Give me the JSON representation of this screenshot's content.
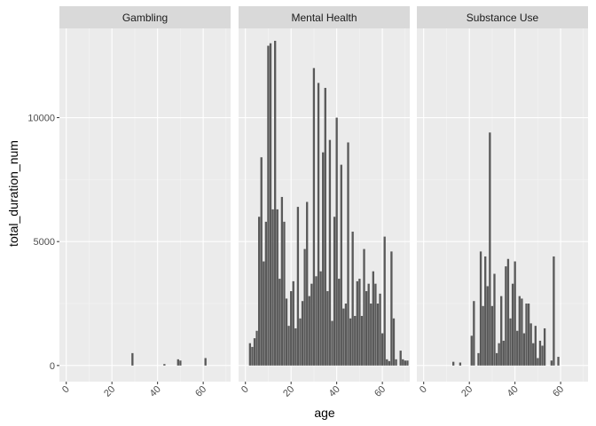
{
  "chart_data": {
    "type": "bar",
    "xlabel": "age",
    "ylabel": "total_duration_num",
    "xlim": [
      -3,
      72
    ],
    "ylim": [
      -650,
      13600
    ],
    "x_ticks": [
      0,
      20,
      40,
      60
    ],
    "y_ticks": [
      0,
      5000,
      10000
    ],
    "y_tick_labels": [
      "0",
      "5000",
      "10000"
    ],
    "grid": true,
    "colors": {
      "bar": "#595959",
      "panel": "#ebebeb",
      "strip": "#d9d9d9",
      "grid_major": "#ffffff"
    },
    "facets": [
      {
        "name": "Gambling",
        "x": [
          29,
          43,
          49,
          50,
          61
        ],
        "values": [
          500,
          60,
          250,
          200,
          300
        ]
      },
      {
        "name": "Mental Health",
        "x": [
          2,
          3,
          4,
          5,
          6,
          7,
          8,
          9,
          10,
          11,
          12,
          13,
          14,
          15,
          16,
          17,
          18,
          19,
          20,
          21,
          22,
          23,
          24,
          25,
          26,
          27,
          28,
          29,
          30,
          31,
          32,
          33,
          34,
          35,
          36,
          37,
          38,
          39,
          40,
          41,
          42,
          43,
          44,
          45,
          46,
          47,
          48,
          49,
          50,
          51,
          52,
          53,
          54,
          55,
          56,
          57,
          58,
          59,
          60,
          61,
          62,
          63,
          64,
          65,
          66,
          68,
          69,
          70,
          71
        ],
        "values": [
          900,
          750,
          1100,
          1400,
          6000,
          8400,
          4200,
          5800,
          12900,
          13000,
          6300,
          13100,
          6300,
          3500,
          6800,
          5800,
          2700,
          1600,
          3000,
          3400,
          1500,
          6400,
          1900,
          2600,
          4700,
          6600,
          2800,
          3300,
          12000,
          3600,
          11400,
          3800,
          8600,
          11200,
          3000,
          9100,
          1800,
          6000,
          10000,
          3500,
          8100,
          2300,
          2500,
          9000,
          1900,
          5400,
          2000,
          3400,
          3500,
          2000,
          4700,
          3000,
          3300,
          2500,
          3800,
          3300,
          2500,
          2900,
          1300,
          5200,
          250,
          180,
          4600,
          1900,
          250,
          600,
          250,
          200,
          200
        ]
      },
      {
        "name": "Substance Use",
        "x": [
          13,
          16,
          21,
          22,
          24,
          25,
          26,
          27,
          28,
          29,
          30,
          31,
          32,
          33,
          34,
          35,
          36,
          37,
          38,
          39,
          40,
          41,
          42,
          43,
          44,
          45,
          46,
          47,
          48,
          49,
          50,
          51,
          52,
          53,
          56,
          57,
          59
        ],
        "values": [
          150,
          120,
          1200,
          2600,
          500,
          4600,
          2400,
          4400,
          3200,
          9400,
          2400,
          3700,
          500,
          900,
          2800,
          1000,
          4000,
          4300,
          1900,
          3300,
          4200,
          1400,
          2800,
          2700,
          1300,
          2500,
          2500,
          1700,
          900,
          1600,
          300,
          1000,
          800,
          1500,
          200,
          4400,
          350
        ]
      }
    ]
  }
}
